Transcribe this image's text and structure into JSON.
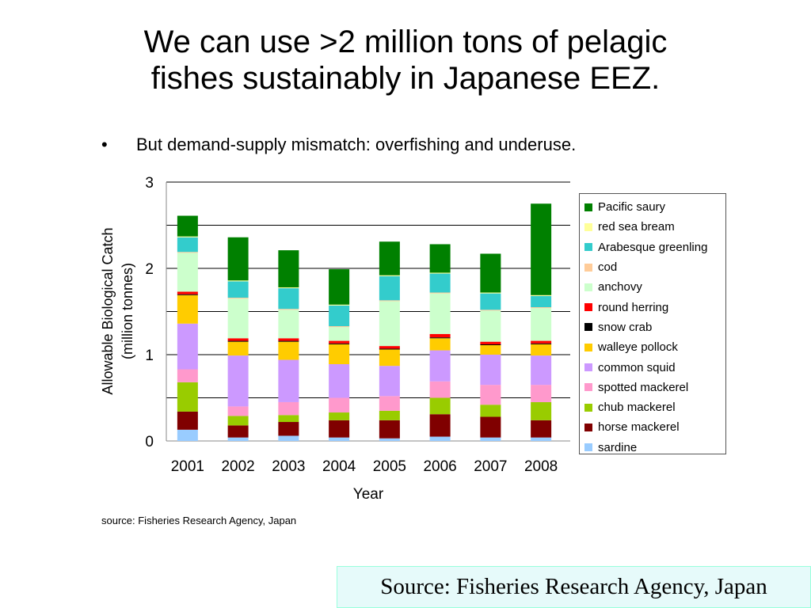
{
  "slide": {
    "title_line1": "We can use >2 million tons of pelagic",
    "title_line2": "fishes sustainably in Japanese EEZ.",
    "bullet_marker": "•",
    "bullet_text": "But demand-supply mismatch: overfishing and underuse.",
    "chart_source": "source: Fisheries Research Agency, Japan",
    "source_box": "Source: Fisheries Research Agency, Japan"
  },
  "chart_data": {
    "type": "bar",
    "stacked": true,
    "categories": [
      "2001",
      "2002",
      "2003",
      "2004",
      "2005",
      "2006",
      "2007",
      "2008"
    ],
    "xlabel": "Year",
    "ylabel_line1": "Allowable Biological Catch",
    "ylabel_line2": "(million tonnes)",
    "ylim": [
      0,
      3
    ],
    "yticks": [
      "0",
      "1",
      "2",
      "3"
    ],
    "grid": true,
    "legend_position": "right",
    "series": [
      {
        "name": "sardine",
        "color": "#99ccff",
        "values": [
          0.13,
          0.04,
          0.06,
          0.04,
          0.03,
          0.05,
          0.04,
          0.04
        ]
      },
      {
        "name": "horse mackerel",
        "color": "#800000",
        "values": [
          0.21,
          0.14,
          0.16,
          0.2,
          0.21,
          0.26,
          0.24,
          0.2
        ]
      },
      {
        "name": "chub mackerel",
        "color": "#99cc00",
        "values": [
          0.34,
          0.11,
          0.08,
          0.09,
          0.11,
          0.19,
          0.14,
          0.21
        ]
      },
      {
        "name": "spotted mackerel",
        "color": "#ff99cc",
        "values": [
          0.15,
          0.11,
          0.15,
          0.17,
          0.17,
          0.19,
          0.23,
          0.2
        ]
      },
      {
        "name": "common squid",
        "color": "#cc99ff",
        "values": [
          0.53,
          0.59,
          0.49,
          0.39,
          0.35,
          0.36,
          0.35,
          0.34
        ]
      },
      {
        "name": "walleye pollock",
        "color": "#ffcc00",
        "values": [
          0.33,
          0.16,
          0.21,
          0.23,
          0.19,
          0.14,
          0.11,
          0.13
        ]
      },
      {
        "name": "snow crab",
        "color": "#000000",
        "values": [
          0.01,
          0.01,
          0.01,
          0.01,
          0.01,
          0.01,
          0.01,
          0.01
        ]
      },
      {
        "name": "round herring",
        "color": "#ff0000",
        "values": [
          0.03,
          0.03,
          0.03,
          0.03,
          0.03,
          0.04,
          0.03,
          0.03
        ]
      },
      {
        "name": "anchovy",
        "color": "#ccffcc",
        "values": [
          0.45,
          0.46,
          0.33,
          0.16,
          0.52,
          0.47,
          0.36,
          0.38
        ]
      },
      {
        "name": "cod",
        "color": "#ffcc99",
        "values": [
          0.01,
          0.01,
          0.01,
          0.01,
          0.01,
          0.01,
          0.01,
          0.01
        ]
      },
      {
        "name": "Arabesque greenling",
        "color": "#33cccc",
        "values": [
          0.17,
          0.19,
          0.24,
          0.24,
          0.28,
          0.22,
          0.19,
          0.13
        ]
      },
      {
        "name": "red sea bream",
        "color": "#ffff99",
        "values": [
          0.01,
          0.01,
          0.01,
          0.01,
          0.01,
          0.01,
          0.01,
          0.01
        ]
      },
      {
        "name": "Pacific saury",
        "color": "#008000",
        "values": [
          0.24,
          0.5,
          0.43,
          0.41,
          0.39,
          0.33,
          0.45,
          1.06
        ]
      }
    ]
  }
}
